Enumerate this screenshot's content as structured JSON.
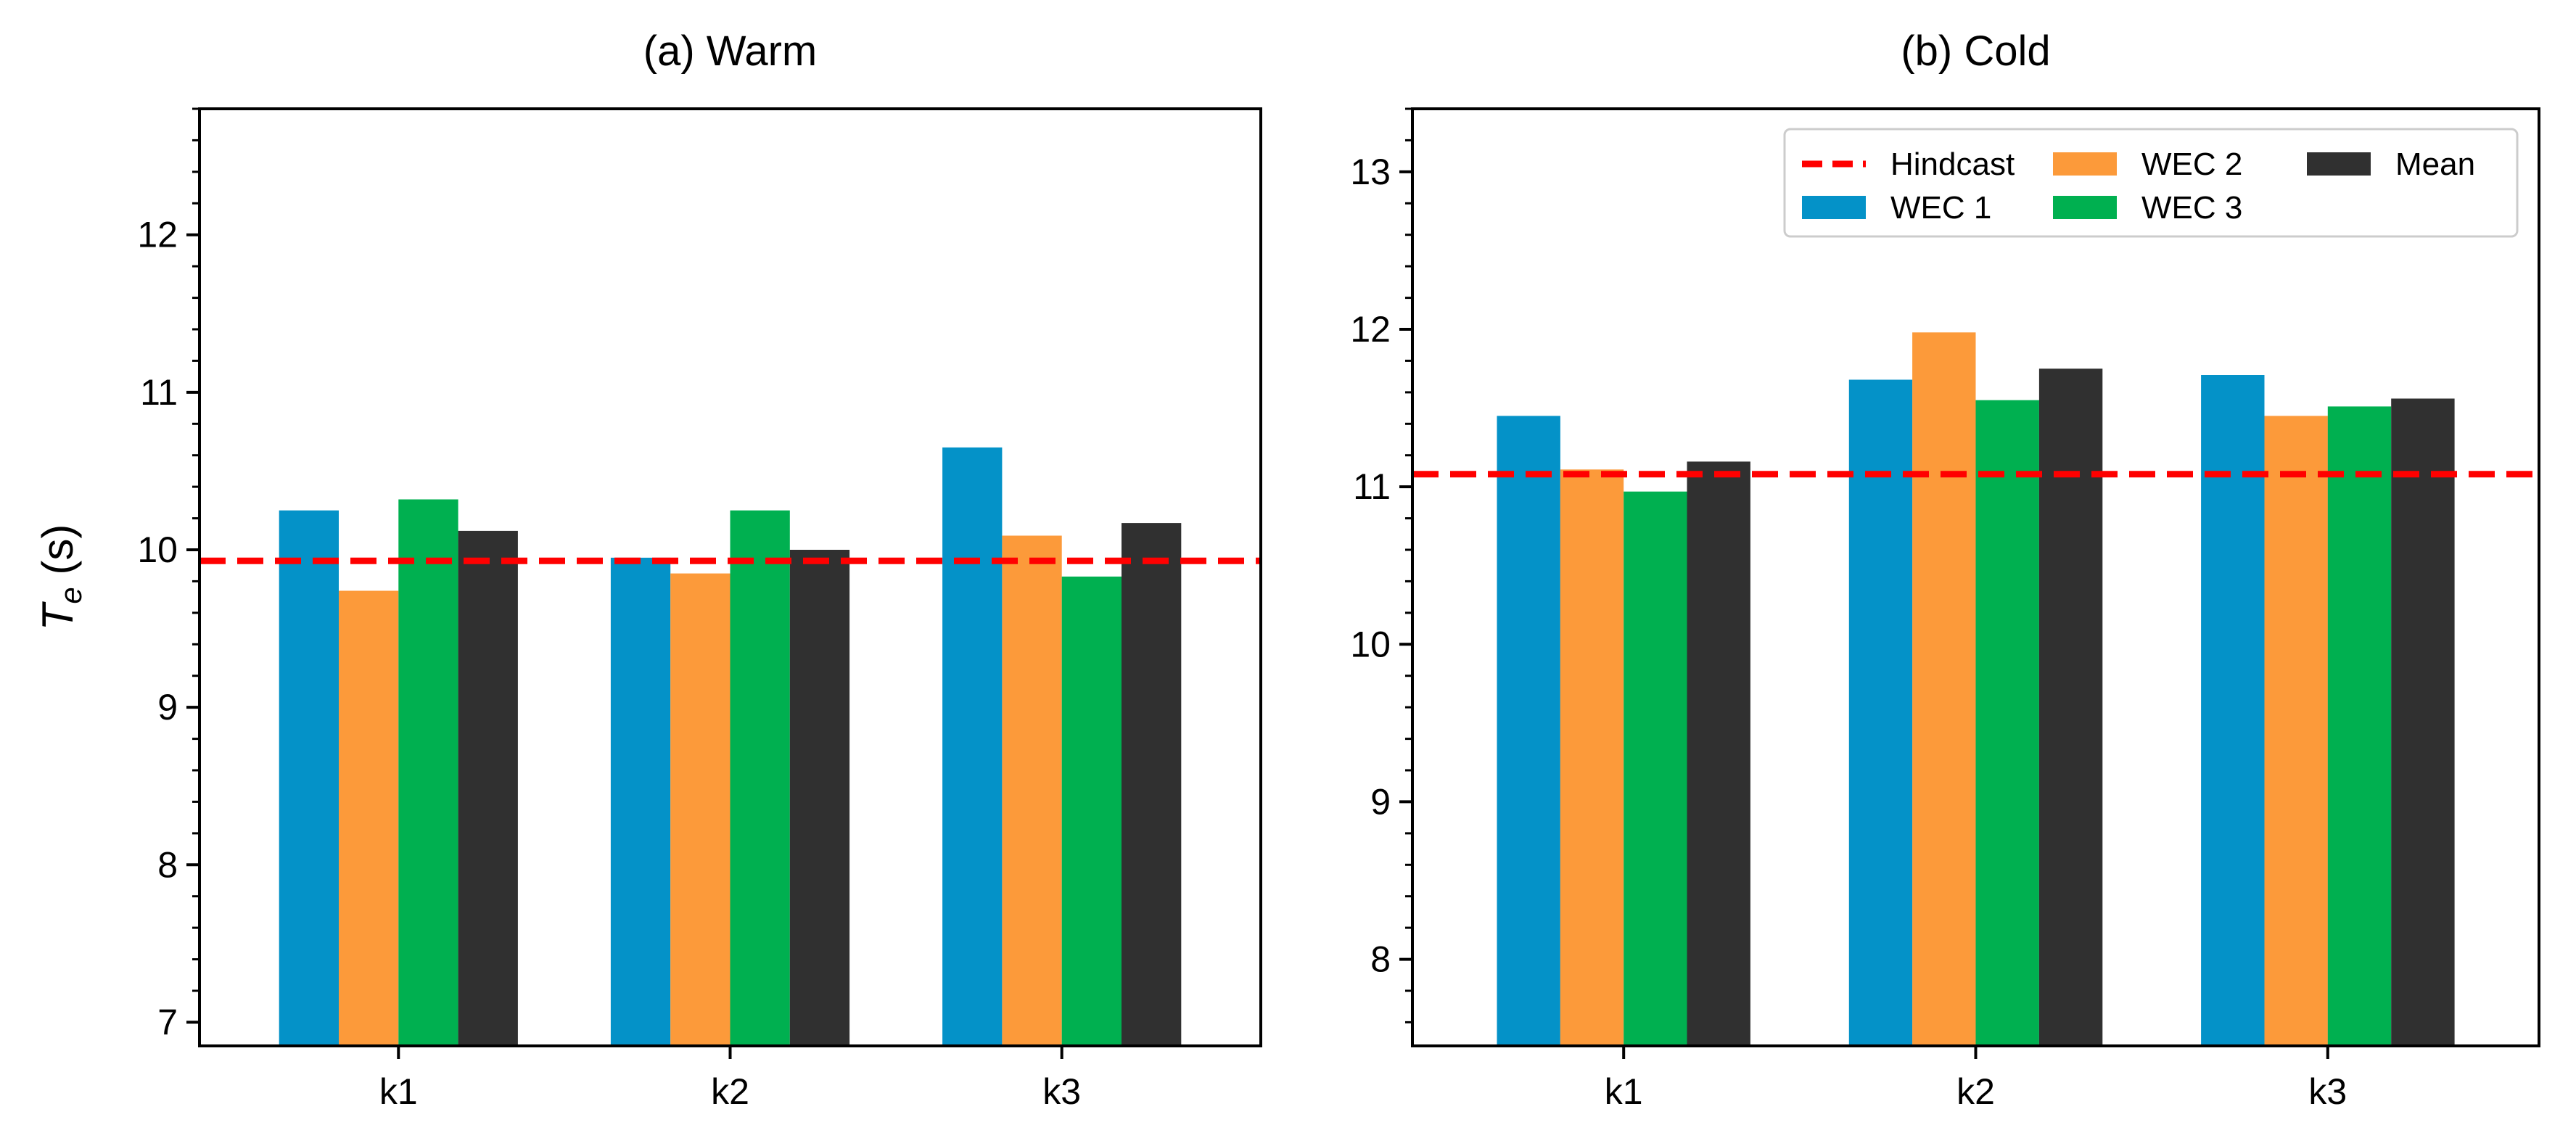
{
  "colors": {
    "WEC 1": "#0492c8",
    "WEC 2": "#fc9a3a",
    "WEC 3": "#00b050",
    "Mean": "#303030",
    "Hindcast": "#ff0000"
  },
  "chart_data": [
    {
      "type": "bar",
      "title": "(a) Warm",
      "ylabel": "T_e (s)",
      "categories": [
        "k1",
        "k2",
        "k3"
      ],
      "ylim": [
        6.85,
        12.8
      ],
      "yticks": [
        "7",
        "8",
        "9",
        "10",
        "11",
        "12"
      ],
      "series": [
        {
          "name": "WEC 1",
          "values": [
            10.25,
            9.95,
            10.65
          ]
        },
        {
          "name": "WEC 2",
          "values": [
            9.74,
            9.85,
            10.09
          ]
        },
        {
          "name": "WEC 3",
          "values": [
            10.32,
            10.25,
            9.83
          ]
        },
        {
          "name": "Mean",
          "values": [
            10.12,
            10.0,
            10.17
          ]
        }
      ],
      "hline": {
        "name": "Hindcast",
        "value": 9.93
      },
      "legend": null
    },
    {
      "type": "bar",
      "title": "(b) Cold",
      "ylabel": "",
      "categories": [
        "k1",
        "k2",
        "k3"
      ],
      "ylim": [
        7.45,
        13.4
      ],
      "yticks": [
        "8",
        "9",
        "10",
        "11",
        "12",
        "13"
      ],
      "series": [
        {
          "name": "WEC 1",
          "values": [
            11.45,
            11.68,
            11.71
          ]
        },
        {
          "name": "WEC 2",
          "values": [
            11.11,
            11.98,
            11.45
          ]
        },
        {
          "name": "WEC 3",
          "values": [
            10.97,
            11.55,
            11.51
          ]
        },
        {
          "name": "Mean",
          "values": [
            11.16,
            11.75,
            11.56
          ]
        }
      ],
      "hline": {
        "name": "Hindcast",
        "value": 11.08
      },
      "legend": {
        "placement": "top-right",
        "entries": [
          "Hindcast",
          "WEC 1",
          "WEC 2",
          "WEC 3",
          "Mean"
        ]
      }
    }
  ]
}
